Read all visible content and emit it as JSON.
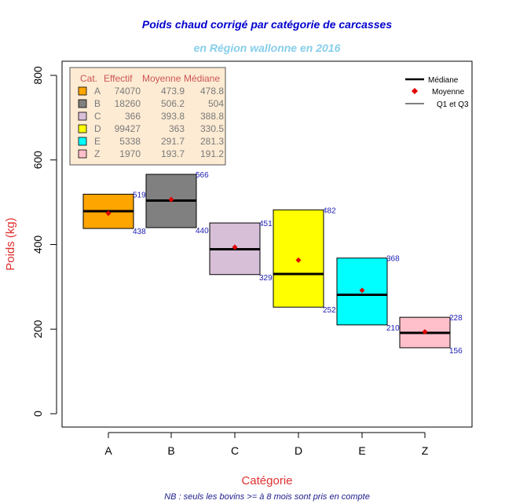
{
  "chart_data": {
    "type": "box",
    "title": "Poids chaud corrigé par catégorie de carcasses",
    "subtitle": "en Région wallonne en 2016",
    "xlabel": "Catégorie",
    "ylabel": "Poids (kg)",
    "note": "NB : seuls les bovins >= à 8 mois sont pris en compte",
    "ylim": [
      0,
      800
    ],
    "yticks": [
      "0",
      "200",
      "400",
      "600",
      "800"
    ],
    "categories": [
      "A",
      "B",
      "C",
      "D",
      "E",
      "Z"
    ],
    "colors": [
      "#ffa500",
      "#808080",
      "#d8bfd8",
      "#ffff00",
      "#00ffff",
      "#ffc0cb"
    ],
    "q1": [
      438,
      440,
      329,
      252,
      210,
      156
    ],
    "q3": [
      519,
      566,
      451,
      482,
      368,
      228
    ],
    "median": [
      478.8,
      504,
      388.8,
      330.5,
      281.3,
      191.2
    ],
    "mean": [
      473.9,
      506.2,
      393.8,
      363,
      291.7,
      193.7
    ],
    "q1_labels": [
      "438",
      "440",
      "329",
      "252",
      "210",
      "156"
    ],
    "q3_labels": [
      "519",
      "566",
      "451",
      "482",
      "368",
      "228"
    ],
    "table": {
      "headers": [
        "Cat.",
        "Effectif",
        "Moyenne",
        "Médiane"
      ],
      "rows": [
        [
          "A",
          "74070",
          "473.9",
          "478.8"
        ],
        [
          "B",
          "18260",
          "506.2",
          "504"
        ],
        [
          "C",
          "366",
          "393.8",
          "388.8"
        ],
        [
          "D",
          "99427",
          "363",
          "330.5"
        ],
        [
          "E",
          "5338",
          "291.7",
          "281.3"
        ],
        [
          "Z",
          "1970",
          "193.7",
          "191.2"
        ]
      ]
    },
    "legend": {
      "position": "top-right",
      "items": [
        "Médiane",
        "Moyenne",
        "Q1 et Q3"
      ]
    }
  }
}
